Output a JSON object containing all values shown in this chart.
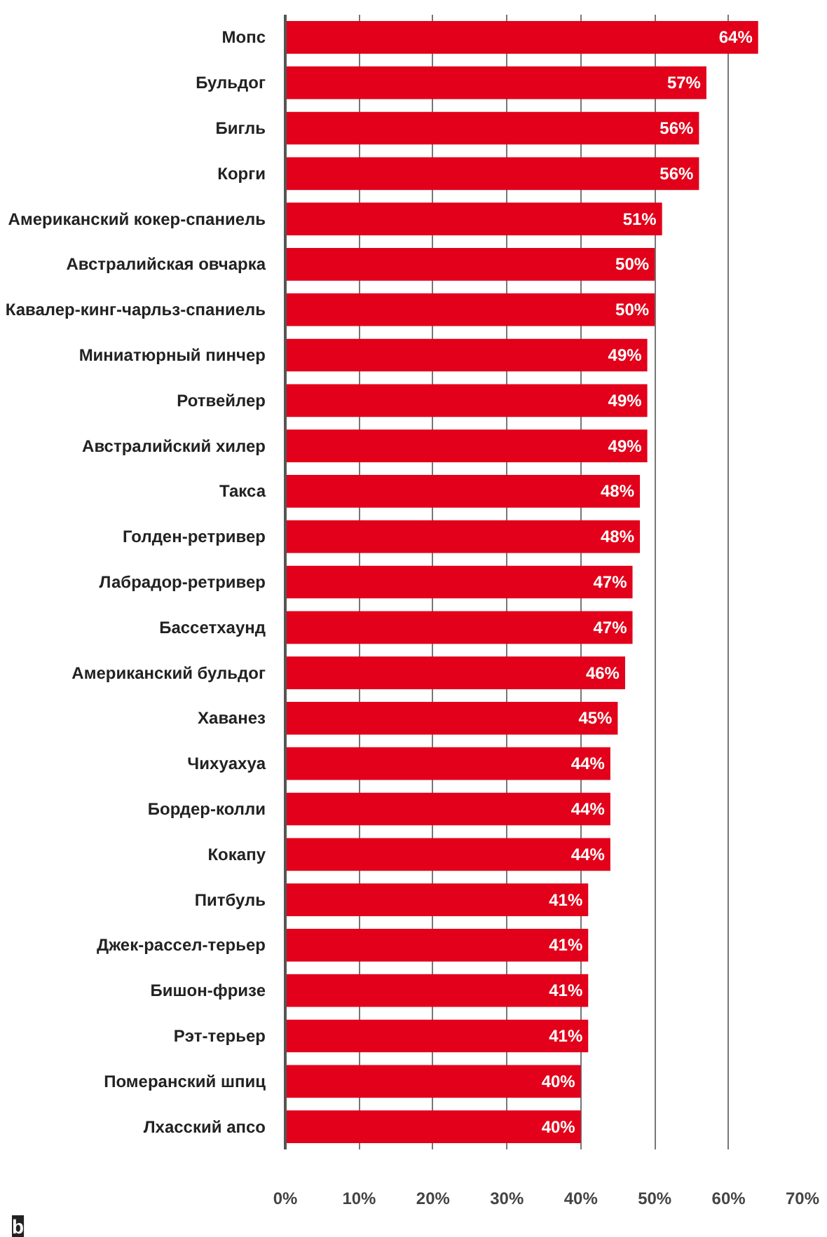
{
  "chart_data": {
    "type": "bar",
    "orientation": "horizontal",
    "categories": [
      "Мопс",
      "Бульдог",
      "Бигль",
      "Корги",
      "Американский кокер-спаниель",
      "Австралийская овчарка",
      "Кавалер-кинг-чарльз-спаниель",
      "Миниатюрный пинчер",
      "Ротвейлер",
      "Австралийский хилер",
      "Такса",
      "Голден-ретривер",
      "Лабрадор-ретривер",
      "Бассетхаунд",
      "Американский бульдог",
      "Хаванез",
      "Чихуахуа",
      "Бордер-колли",
      "Кокапу",
      "Питбуль",
      "Джек-рассел-терьер",
      "Бишон-фризе",
      "Рэт-терьер",
      "Померанский шпиц",
      "Лхасский апсо"
    ],
    "values": [
      64,
      57,
      56,
      56,
      51,
      50,
      50,
      49,
      49,
      49,
      48,
      48,
      47,
      47,
      46,
      45,
      44,
      44,
      44,
      41,
      41,
      41,
      41,
      40,
      40
    ],
    "value_labels": [
      "64%",
      "57%",
      "56%",
      "56%",
      "51%",
      "50%",
      "50%",
      "49%",
      "49%",
      "49%",
      "48%",
      "48%",
      "47%",
      "47%",
      "46%",
      "45%",
      "44%",
      "44%",
      "44%",
      "41%",
      "41%",
      "41%",
      "41%",
      "40%",
      "40%"
    ],
    "color": "#e2001a",
    "xlim": [
      0,
      70
    ],
    "xticks": [
      {
        "value": 0,
        "label": "0%"
      },
      {
        "value": 10,
        "label": "10%"
      },
      {
        "value": 20,
        "label": "20%"
      },
      {
        "value": 30,
        "label": "30%"
      },
      {
        "value": 40,
        "label": "40%"
      },
      {
        "value": 50,
        "label": "50%"
      },
      {
        "value": 60,
        "label": "60%"
      },
      {
        "value": 70,
        "label": "70%"
      }
    ],
    "grid": "x",
    "annotations": [
      "b"
    ]
  }
}
